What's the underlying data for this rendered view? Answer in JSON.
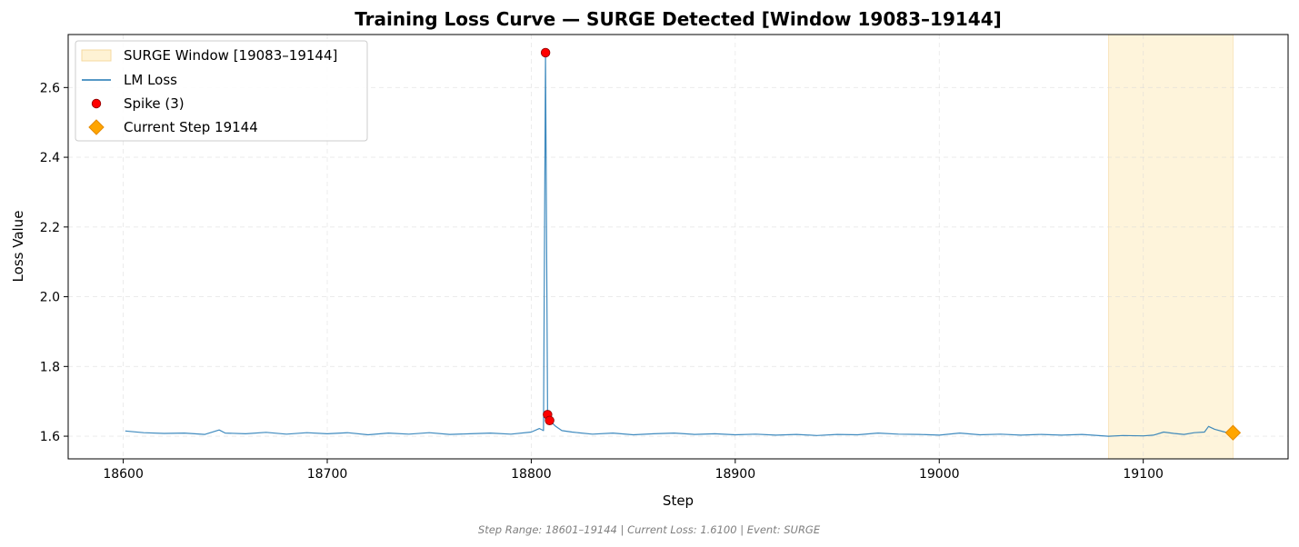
{
  "chart_data": {
    "type": "line",
    "title": "Training Loss Curve — SURGE Detected [Window 19083–19144]",
    "xlabel": "Step",
    "ylabel": "Loss Value",
    "xlim": [
      18573,
      19171
    ],
    "ylim": [
      1.535,
      2.752
    ],
    "xticks": [
      18600,
      18700,
      18800,
      18900,
      19000,
      19100
    ],
    "yticks": [
      1.6,
      1.8,
      2.0,
      2.2,
      2.4,
      2.6
    ],
    "xtick_labels": [
      "18600",
      "18700",
      "18800",
      "18900",
      "19000",
      "19100"
    ],
    "ytick_labels": [
      "1.6",
      "1.8",
      "2.0",
      "2.2",
      "2.4",
      "2.6"
    ],
    "grid": true,
    "legend_position": "top-left",
    "colors": {
      "line": "#1f77b4",
      "spike": "#ff0000",
      "current": "#ffa500",
      "window": "#fde9b8"
    },
    "window": {
      "label": "SURGE Window [19083–19144]",
      "start": 19083,
      "end": 19144
    },
    "series": [
      {
        "name": "LM Loss",
        "x": [
          18601,
          18610,
          18620,
          18630,
          18640,
          18647,
          18650,
          18660,
          18670,
          18680,
          18690,
          18700,
          18710,
          18720,
          18730,
          18740,
          18750,
          18760,
          18770,
          18780,
          18790,
          18800,
          18804,
          18806,
          18807,
          18808,
          18809,
          18812,
          18815,
          18820,
          18830,
          18840,
          18850,
          18860,
          18870,
          18880,
          18890,
          18900,
          18910,
          18920,
          18930,
          18940,
          18950,
          18960,
          18970,
          18980,
          18990,
          19000,
          19010,
          19020,
          19030,
          19040,
          19050,
          19060,
          19070,
          19075,
          19083,
          19090,
          19100,
          19105,
          19110,
          19115,
          19120,
          19125,
          19130,
          19132,
          19135,
          19140,
          19144
        ],
        "y": [
          1.615,
          1.61,
          1.608,
          1.609,
          1.605,
          1.618,
          1.609,
          1.607,
          1.611,
          1.606,
          1.61,
          1.607,
          1.61,
          1.604,
          1.609,
          1.606,
          1.61,
          1.605,
          1.607,
          1.609,
          1.606,
          1.612,
          1.622,
          1.616,
          2.7,
          1.662,
          1.645,
          1.628,
          1.616,
          1.612,
          1.606,
          1.609,
          1.604,
          1.607,
          1.609,
          1.605,
          1.607,
          1.604,
          1.606,
          1.603,
          1.605,
          1.602,
          1.605,
          1.604,
          1.609,
          1.606,
          1.605,
          1.603,
          1.609,
          1.604,
          1.606,
          1.603,
          1.605,
          1.603,
          1.605,
          1.603,
          1.6,
          1.602,
          1.601,
          1.603,
          1.612,
          1.608,
          1.605,
          1.61,
          1.612,
          1.628,
          1.62,
          1.612,
          1.61
        ]
      },
      {
        "name": "Spike (3)",
        "x": [
          18807,
          18808,
          18809
        ],
        "y": [
          2.7,
          1.662,
          1.645
        ]
      },
      {
        "name": "Current Step 19144",
        "x": [
          19144
        ],
        "y": [
          1.61
        ]
      }
    ]
  },
  "footer": "Step Range: 18601–19144 | Current Loss: 1.6100 | Event: SURGE"
}
